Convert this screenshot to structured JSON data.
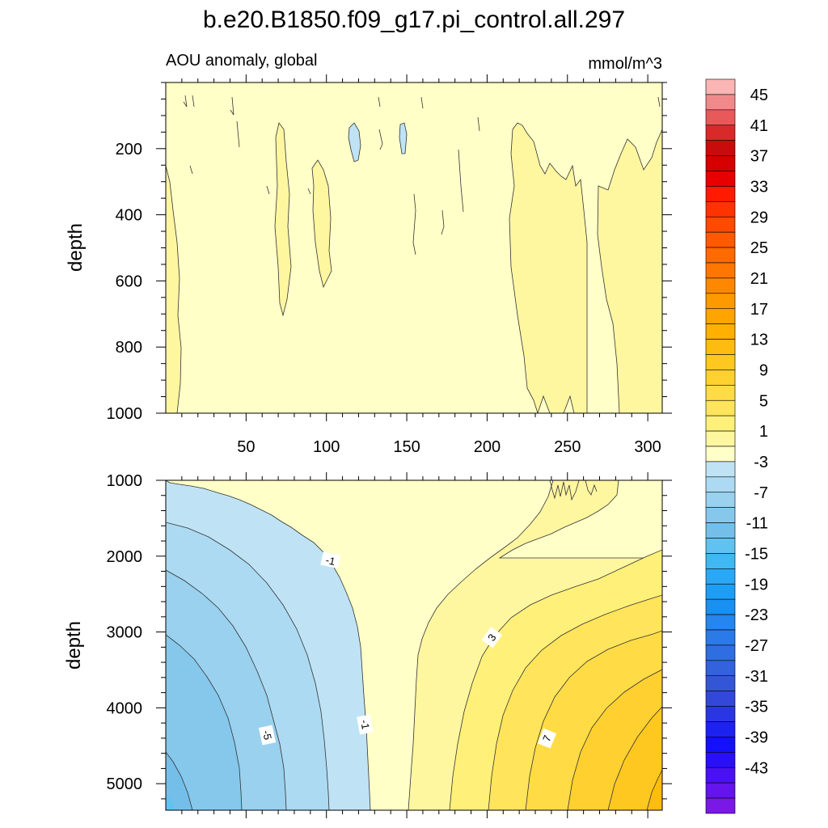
{
  "title": "b.e20.B1850.f09_g17.pi_control.all.297",
  "subtitle_left": "AOU anomaly, global",
  "subtitle_right": "mmol/m^3",
  "chart_data": [
    {
      "type": "heatmap",
      "panel": "upper",
      "ylabel": "depth",
      "xlim": [
        0,
        309
      ],
      "ylim": [
        1000,
        0
      ],
      "x_ticks": [
        50,
        100,
        150,
        200,
        250,
        300
      ],
      "y_ticks": [
        200,
        400,
        600,
        800,
        1000
      ],
      "contour_interval": 2,
      "fill_levels": [
        {
          "x": [
            0,
            309
          ],
          "y": [
            0,
            1000
          ],
          "value_range": [
            -1,
            1
          ]
        },
        {
          "x": [
            0,
            9
          ],
          "y": [
            230,
            640
          ],
          "value_range": [
            1,
            3
          ]
        },
        {
          "x": [
            34,
            41
          ],
          "y": [
            140,
            560
          ],
          "value_range": [
            1,
            3
          ]
        },
        {
          "x": [
            90,
            103
          ],
          "y": [
            240,
            660
          ],
          "value_range": [
            1,
            3
          ]
        },
        {
          "x": [
            216,
            260
          ],
          "y": [
            150,
            1000
          ],
          "value_range": [
            1,
            3
          ]
        },
        {
          "x": [
            274,
            309
          ],
          "y": [
            150,
            1000
          ],
          "value_range": [
            1,
            3
          ]
        },
        {
          "x": [
            113,
            120
          ],
          "y": [
            140,
            240
          ],
          "value_range": [
            -3,
            -1
          ]
        },
        {
          "x": [
            146,
            149
          ],
          "y": [
            140,
            220
          ],
          "value_range": [
            -3,
            -1
          ]
        }
      ]
    },
    {
      "type": "heatmap",
      "panel": "lower",
      "ylabel": "depth",
      "xlim": [
        0,
        309
      ],
      "ylim": [
        5350,
        1000
      ],
      "x_ticks": [
        50,
        100,
        150,
        200,
        250,
        300
      ],
      "y_ticks": [
        1000,
        2000,
        3000,
        4000,
        5000
      ],
      "contour_interval": 2,
      "contour_labels": [
        "-1",
        "-1",
        "-5",
        "3",
        "7"
      ],
      "regions": [
        {
          "side": "west",
          "value_range": [
            -13,
            -1
          ],
          "note": "negative anomaly increasing toward bottom-left"
        },
        {
          "side": "center",
          "value_range": [
            -1,
            1
          ]
        },
        {
          "side": "east",
          "value_range": [
            1,
            11
          ],
          "note": "positive anomaly increasing toward bottom-right"
        }
      ]
    }
  ],
  "colorbar": {
    "labels": [
      "45",
      "41",
      "37",
      "33",
      "29",
      "25",
      "21",
      "17",
      "13",
      "9",
      "5",
      "1",
      "-3",
      "-7",
      "-11",
      "-15",
      "-19",
      "-23",
      "-27",
      "-31",
      "-35",
      "-39",
      "-43"
    ],
    "colors_top_to_bottom": [
      "#fbb5b5",
      "#f08a8a",
      "#e85a5a",
      "#d92a2a",
      "#c80c0c",
      "#d60000",
      "#e80000",
      "#ff1a00",
      "#ff3300",
      "#ff4a00",
      "#ff5a00",
      "#ff6a00",
      "#ff7700",
      "#ff8800",
      "#ff9900",
      "#ffa400",
      "#ffb000",
      "#ffbc10",
      "#ffc820",
      "#ffd030",
      "#ffdc45",
      "#ffe45c",
      "#fff07a",
      "#fff6a0",
      "#ffffc8",
      "#bfe3f5",
      "#acdaf2",
      "#99d1ef",
      "#86c8ec",
      "#74bfe9",
      "#60c2f0",
      "#40b8f2",
      "#2aa8f5",
      "#1c9ef5",
      "#1a90f0",
      "#2486ee",
      "#2a7ae8",
      "#2f6ee2",
      "#3262dc",
      "#3456d6",
      "#3348d8",
      "#2a36e4",
      "#1e22f0",
      "#1410fa",
      "#2a10f8",
      "#4a12f2",
      "#6414ec",
      "#7a18e8"
    ]
  }
}
